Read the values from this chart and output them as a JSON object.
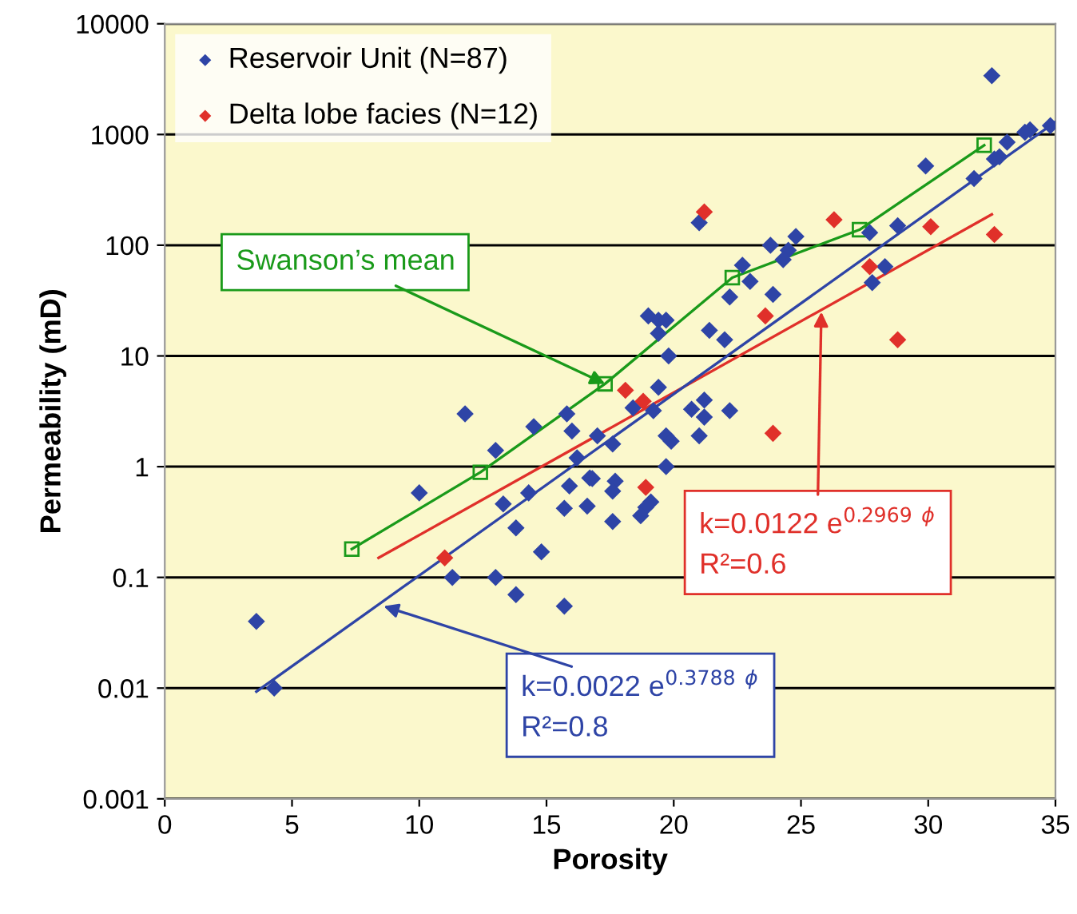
{
  "chart_data": {
    "type": "scatter",
    "xlabel": "Porosity",
    "ylabel": "Permeability (mD)",
    "log": "y",
    "grid": "y",
    "legend": "top left",
    "marker": "diamond",
    "xlim": [
      0,
      35
    ],
    "xticks": [
      0,
      5,
      10,
      15,
      20,
      25,
      30,
      35
    ],
    "ylim": [
      0.001,
      10000
    ],
    "yticks": [
      {
        "value": 0.001,
        "label": "0.001"
      },
      {
        "value": 0.01,
        "label": "0.01"
      },
      {
        "value": 0.1,
        "label": "0.1"
      },
      {
        "value": 1,
        "label": "1"
      },
      {
        "value": 10,
        "label": "10"
      },
      {
        "value": 100,
        "label": "100"
      },
      {
        "value": 1000,
        "label": "1000"
      },
      {
        "value": 10000,
        "label": "10000"
      }
    ],
    "series": [
      {
        "name": "Reservoir Unit (N=87)",
        "color": "#2e44a6",
        "x": [
          3.6,
          4.3,
          10,
          11.8,
          11.3,
          13,
          13.8,
          15.7,
          14.8,
          13.8,
          13.3,
          14.3,
          13,
          14.5,
          15.8,
          16,
          17,
          16.2,
          15.9,
          16.7,
          15.7,
          16.6,
          32.5,
          34.8,
          34,
          33.8,
          33.1,
          32.8,
          32.6,
          31.8,
          29.9,
          28.8,
          27.7,
          28.3,
          27.8,
          24.8,
          24.5,
          24.3,
          23.8,
          23.9,
          22.7,
          23,
          22.2,
          21.4,
          22,
          21,
          19.8,
          19,
          19.4,
          19.7,
          19.4,
          19.4,
          21.2,
          20.7,
          22.2,
          19.2,
          18.4,
          21.2,
          17.6,
          19.7,
          19.9,
          21,
          19.7,
          17.7,
          17.6,
          19.1,
          18.9,
          18.7,
          17.6,
          16.8
        ],
        "values": [
          0.04,
          0.01,
          0.58,
          3,
          0.1,
          0.1,
          0.07,
          0.055,
          0.17,
          0.28,
          0.46,
          0.58,
          1.4,
          2.3,
          3,
          2.1,
          1.9,
          1.2,
          0.67,
          0.79,
          0.42,
          0.44,
          3400,
          1200,
          1100,
          1050,
          850,
          630,
          600,
          400,
          520,
          150,
          130,
          64,
          46,
          120,
          90,
          74,
          100,
          36,
          66,
          47,
          34,
          17,
          14,
          160,
          10,
          23,
          21,
          21,
          16,
          5.2,
          4,
          3.3,
          3.2,
          3.2,
          3.4,
          2.8,
          1.6,
          1.9,
          1.7,
          1.9,
          1,
          0.74,
          0.6,
          0.48,
          0.43,
          0.36,
          0.32,
          0.78
        ]
      },
      {
        "name": "Delta lobe facies (N=12)",
        "color": "#e0302a",
        "x": [
          21.2,
          26.3,
          30.1,
          32.6,
          27.7,
          23.6,
          28.8,
          18.1,
          18.8,
          23.9,
          18.9,
          11
        ],
        "values": [
          200,
          170,
          147,
          125,
          64,
          23,
          14,
          4.9,
          3.9,
          2,
          0.65,
          0.15
        ]
      },
      {
        "color": "#1a9a1a",
        "type": "line",
        "marker": "square",
        "x": [
          7.35,
          12.4,
          17.3,
          22.3,
          27.3,
          32.2
        ],
        "values": [
          0.18,
          0.89,
          5.6,
          51,
          138,
          800
        ]
      },
      {
        "color": "#e0302a",
        "type": "line",
        "marker": "none",
        "x": [
          8.4,
          32.5
        ],
        "values": [
          0.15,
          190
        ]
      },
      {
        "color": "#2e44a6",
        "type": "line",
        "marker": "none",
        "x": [
          3.6,
          35
        ],
        "values": [
          0.0093,
          1300
        ]
      }
    ],
    "annotations": [
      {
        "text": "Swanson’s mean",
        "x": 17.3,
        "y": 5.6
      },
      {
        "text": "k=0.0122 e$^{0.2969}$ $^{ϕ}$",
        "x": 25.8,
        "y": 25
      },
      "R²=0.6",
      {
        "text": "k=0.0022 e$^{0.3788}$ $^{ϕ}$",
        "x": 8.6,
        "y": 0.055
      },
      "R²=0.8"
    ]
  }
}
